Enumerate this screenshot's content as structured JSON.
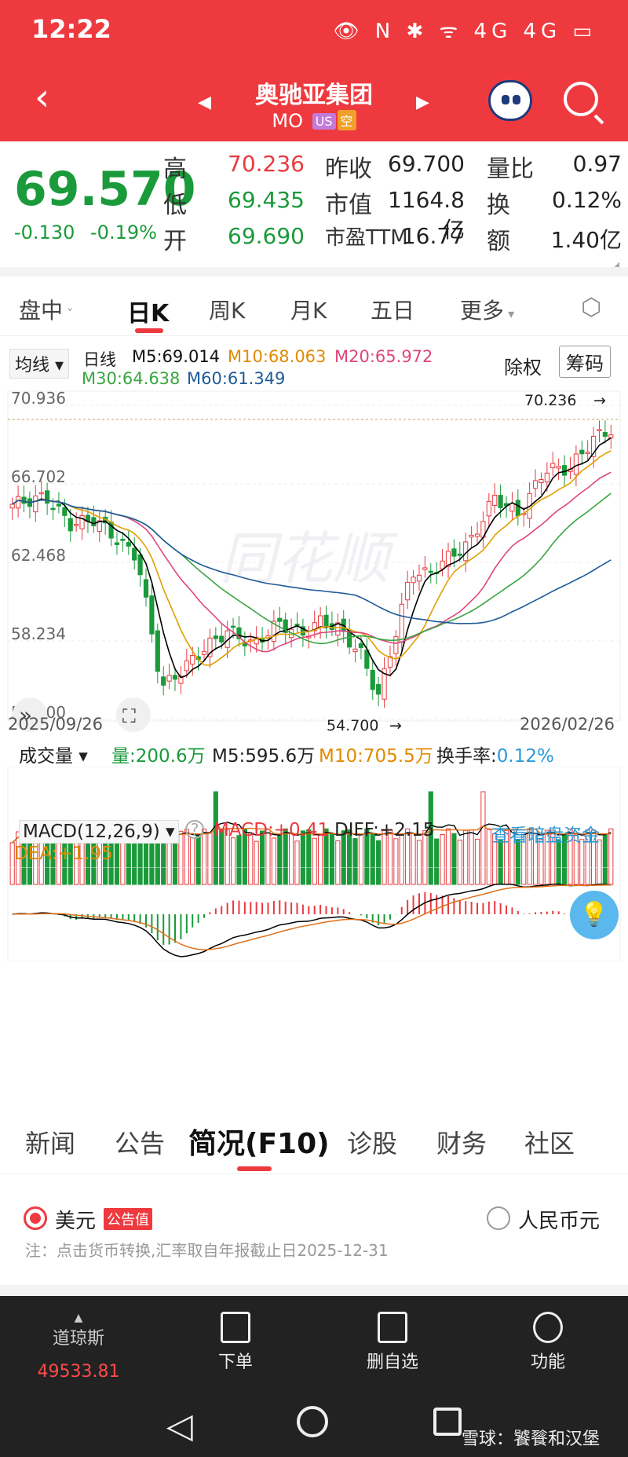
{
  "status": {
    "time": "12:22",
    "icons": "👁 N ✱ ᯤ 4G 4G ▭"
  },
  "title": {
    "name": "奥驰亚集团",
    "code": "MO",
    "tag_us": "US",
    "tag_short": "空"
  },
  "quote": {
    "price": "69.570",
    "change": "-0.130",
    "change_pct": "-0.19%",
    "fields": [
      {
        "label": "高",
        "value": "70.236"
      },
      {
        "label": "低",
        "value": "69.435"
      },
      {
        "label": "开",
        "value": "69.690"
      }
    ],
    "fields2": [
      {
        "label": "昨收",
        "value": "69.700"
      },
      {
        "label": "市值",
        "value": "1164.8亿"
      },
      {
        "label": "市盈TTM",
        "value": "16.77"
      }
    ],
    "fields3": [
      {
        "label": "量比",
        "value": "0.97"
      },
      {
        "label": "换",
        "value": "0.12%"
      },
      {
        "label": "额",
        "value": "1.40亿"
      }
    ]
  },
  "period_tabs": [
    "盘中",
    "日K",
    "周K",
    "月K",
    "五日",
    "更多"
  ],
  "ma_bar": {
    "selector": "均线",
    "kind": "日线",
    "m5": "M5:69.014",
    "m10": "M10:68.063",
    "m20": "M20:65.972",
    "m30": "M30:64.638",
    "m60": "M60:61.349",
    "rights": "除权",
    "chips": "筹码"
  },
  "price_axis": [
    "70.936",
    "66.702",
    "62.468",
    "58.234",
    "54.000"
  ],
  "chart_labels": {
    "high": "70.236",
    "low": "54.700",
    "start_date": "2025/09/26",
    "end_date": "2026/02/26",
    "watermark": "同花顺"
  },
  "volume_bar": {
    "selector": "成交量",
    "vol": "量:200.6万",
    "m5": "M5:595.6万",
    "m10": "M10:705.5万",
    "turnover_label": "换手率:",
    "turnover": "0.12%"
  },
  "macd_bar": {
    "selector": "MACD(12,26,9)",
    "macd": "MACD:+0.41",
    "diff": "DIFF:+2.15",
    "dea": "DEA:+1.95",
    "dark_pool": "查看暗盘资金"
  },
  "colors": {
    "up": "#e83a3f",
    "down": "#1a9a3a",
    "brand": "#ee3a3f",
    "m5": "#000000",
    "m10": "#e0a000",
    "m20": "#e0457a",
    "m30": "#3aa640",
    "m60": "#1f5a9a"
  },
  "bottom_tabs": [
    "新闻",
    "公告",
    "简况(F10)",
    "诊股",
    "财务",
    "社区"
  ],
  "currency": {
    "usd": "美元",
    "usd_tag": "公告值",
    "cny": "人民币元",
    "note": "注：点击货币转换,汇率取自年报截止日2025-12-31"
  },
  "bottom_nav": [
    {
      "label": "道琼斯",
      "value": "49533.81"
    },
    {
      "label": "下单"
    },
    {
      "label": "删自选"
    },
    {
      "label": "功能"
    }
  ],
  "watermark_footer": "雪球：饕餮和汉堡"
}
